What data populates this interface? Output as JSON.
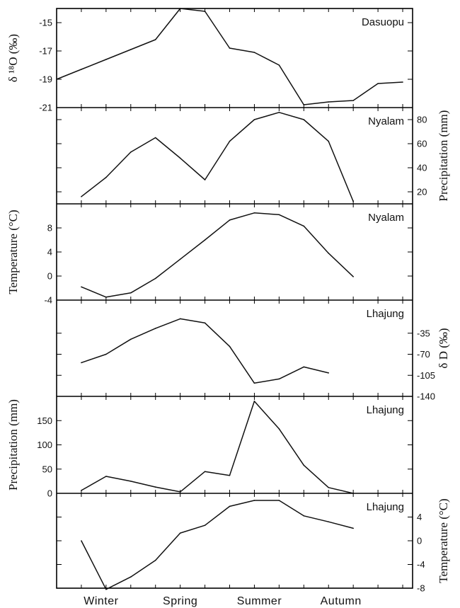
{
  "chart_data": {
    "type": "line",
    "x_categories": [
      "Winter",
      "Spring",
      "Summer",
      "Autumn"
    ],
    "panels": [
      {
        "label": "Dasuopu",
        "ylabel": "δ ¹⁸O (‰)",
        "axis_side": "left",
        "ylim": [
          -21,
          -14
        ],
        "ticks": [
          -15,
          -17,
          -19,
          -21
        ],
        "x": [
          0,
          1,
          2,
          3,
          4,
          5,
          6,
          7,
          8,
          9,
          10,
          11,
          12,
          13,
          14
        ],
        "values": [
          -19,
          -18.3,
          -17.6,
          -16.9,
          -16.2,
          -14.0,
          -14.2,
          -16.8,
          -17.1,
          -18.0,
          -20.8,
          -20.6,
          -20.5,
          -19.3,
          -19.2
        ]
      },
      {
        "label": "Nyalam",
        "ylabel": "Precipitation (mm)",
        "axis_side": "right",
        "ylim": [
          10,
          90
        ],
        "ticks": [
          20,
          40,
          60,
          80
        ],
        "x": [
          1,
          2,
          3,
          4,
          5,
          6,
          7,
          8,
          9,
          10,
          11,
          12
        ],
        "values": [
          16,
          32,
          53,
          65,
          48,
          30,
          62,
          80,
          86,
          80,
          62,
          12
        ]
      },
      {
        "label": "Nyalam",
        "ylabel": "Temperature (°C)",
        "axis_side": "left",
        "ylim": [
          -4,
          12
        ],
        "ticks": [
          -4,
          0,
          4,
          8
        ],
        "x": [
          1,
          2,
          3,
          4,
          5,
          6,
          7,
          8,
          9,
          10,
          11,
          12
        ],
        "values": [
          -1.8,
          -3.5,
          -2.8,
          -0.4,
          2.8,
          6.0,
          9.3,
          10.5,
          10.2,
          8.3,
          3.8,
          -0.1
        ]
      },
      {
        "label": "Lhajung",
        "ylabel": "δ D (‰)",
        "axis_side": "right",
        "ylim": [
          -140,
          20
        ],
        "ticks": [
          -35,
          -70,
          -105,
          -140
        ],
        "x": [
          1,
          2,
          3,
          4,
          5,
          6,
          7,
          8,
          9,
          10,
          11
        ],
        "values": [
          -84,
          -70,
          -45,
          -27,
          -11,
          -18,
          -57,
          -118,
          -111,
          -91,
          -101
        ]
      },
      {
        "label": "Lhajung",
        "ylabel": "Precipitation (mm)",
        "axis_side": "left",
        "ylim": [
          0,
          200
        ],
        "ticks": [
          0,
          50,
          100,
          150
        ],
        "x": [
          1,
          2,
          3,
          4,
          5,
          6,
          7,
          8,
          9,
          10,
          11,
          12
        ],
        "values": [
          6,
          35,
          25,
          13,
          3,
          45,
          37,
          190,
          133,
          58,
          12,
          0
        ]
      },
      {
        "label": "Lhajung",
        "ylabel": "Temperature (°C)",
        "axis_side": "right",
        "ylim": [
          -8,
          8
        ],
        "ticks": [
          4,
          0,
          -4,
          -8
        ],
        "x": [
          1,
          2,
          3,
          4,
          5,
          6,
          7,
          8,
          9,
          10,
          11,
          12
        ],
        "values": [
          0,
          -8.2,
          -6.1,
          -3.3,
          1.3,
          2.6,
          5.8,
          6.8,
          6.8,
          4.2,
          3.2,
          2.1
        ]
      }
    ],
    "grid": false,
    "legend": "none"
  }
}
